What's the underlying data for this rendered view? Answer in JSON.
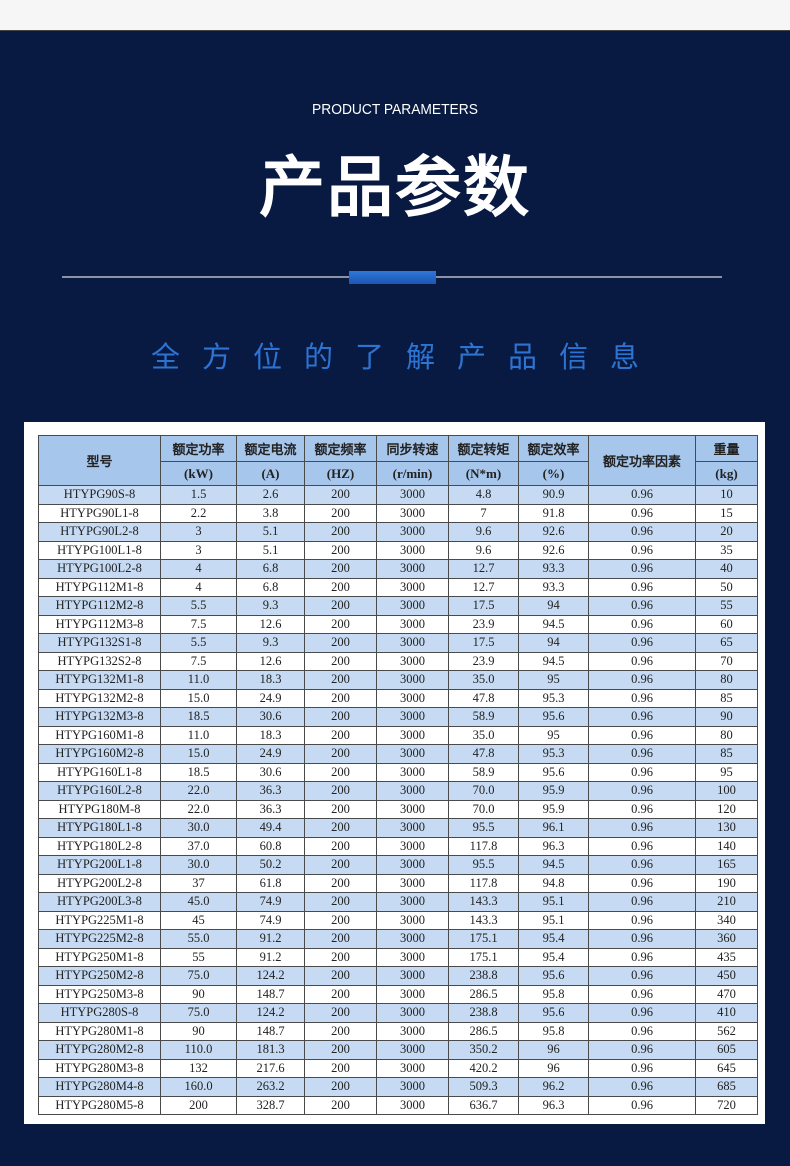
{
  "header": {
    "subtitle_en": "PRODUCT PARAMETERS",
    "title": "产品参数",
    "tagline": "全方位的了解产品信息"
  },
  "colors": {
    "background": "#081a42",
    "accent": "#2d73d2",
    "header_cell": "#a7c6ec",
    "alt_row": "#c6dbf3"
  },
  "table": {
    "columns": [
      {
        "label": "型号",
        "unit": ""
      },
      {
        "label": "额定功率",
        "unit": "(kW)"
      },
      {
        "label": "额定电流",
        "unit": "(A)"
      },
      {
        "label": "额定频率",
        "unit": "(HZ)"
      },
      {
        "label": "同步转速",
        "unit": "(r/min)"
      },
      {
        "label": "额定转矩",
        "unit": "(N*m)"
      },
      {
        "label": "额定效率",
        "unit": "(%)"
      },
      {
        "label": "额定功率因素",
        "unit": ""
      },
      {
        "label": "重量",
        "unit": "(kg)"
      }
    ],
    "rows": [
      [
        "HTYPG90S-8",
        "1.5",
        "2.6",
        "200",
        "3000",
        "4.8",
        "90.9",
        "0.96",
        "10"
      ],
      [
        "HTYPG90L1-8",
        "2.2",
        "3.8",
        "200",
        "3000",
        "7",
        "91.8",
        "0.96",
        "15"
      ],
      [
        "HTYPG90L2-8",
        "3",
        "5.1",
        "200",
        "3000",
        "9.6",
        "92.6",
        "0.96",
        "20"
      ],
      [
        "HTYPG100L1-8",
        "3",
        "5.1",
        "200",
        "3000",
        "9.6",
        "92.6",
        "0.96",
        "35"
      ],
      [
        "HTYPG100L2-8",
        "4",
        "6.8",
        "200",
        "3000",
        "12.7",
        "93.3",
        "0.96",
        "40"
      ],
      [
        "HTYPG112M1-8",
        "4",
        "6.8",
        "200",
        "3000",
        "12.7",
        "93.3",
        "0.96",
        "50"
      ],
      [
        "HTYPG112M2-8",
        "5.5",
        "9.3",
        "200",
        "3000",
        "17.5",
        "94",
        "0.96",
        "55"
      ],
      [
        "HTYPG112M3-8",
        "7.5",
        "12.6",
        "200",
        "3000",
        "23.9",
        "94.5",
        "0.96",
        "60"
      ],
      [
        "HTYPG132S1-8",
        "5.5",
        "9.3",
        "200",
        "3000",
        "17.5",
        "94",
        "0.96",
        "65"
      ],
      [
        "HTYPG132S2-8",
        "7.5",
        "12.6",
        "200",
        "3000",
        "23.9",
        "94.5",
        "0.96",
        "70"
      ],
      [
        "HTYPG132M1-8",
        "11.0",
        "18.3",
        "200",
        "3000",
        "35.0",
        "95",
        "0.96",
        "80"
      ],
      [
        "HTYPG132M2-8",
        "15.0",
        "24.9",
        "200",
        "3000",
        "47.8",
        "95.3",
        "0.96",
        "85"
      ],
      [
        "HTYPG132M3-8",
        "18.5",
        "30.6",
        "200",
        "3000",
        "58.9",
        "95.6",
        "0.96",
        "90"
      ],
      [
        "HTYPG160M1-8",
        "11.0",
        "18.3",
        "200",
        "3000",
        "35.0",
        "95",
        "0.96",
        "80"
      ],
      [
        "HTYPG160M2-8",
        "15.0",
        "24.9",
        "200",
        "3000",
        "47.8",
        "95.3",
        "0.96",
        "85"
      ],
      [
        "HTYPG160L1-8",
        "18.5",
        "30.6",
        "200",
        "3000",
        "58.9",
        "95.6",
        "0.96",
        "95"
      ],
      [
        "HTYPG160L2-8",
        "22.0",
        "36.3",
        "200",
        "3000",
        "70.0",
        "95.9",
        "0.96",
        "100"
      ],
      [
        "HTYPG180M-8",
        "22.0",
        "36.3",
        "200",
        "3000",
        "70.0",
        "95.9",
        "0.96",
        "120"
      ],
      [
        "HTYPG180L1-8",
        "30.0",
        "49.4",
        "200",
        "3000",
        "95.5",
        "96.1",
        "0.96",
        "130"
      ],
      [
        "HTYPG180L2-8",
        "37.0",
        "60.8",
        "200",
        "3000",
        "117.8",
        "96.3",
        "0.96",
        "140"
      ],
      [
        "HTYPG200L1-8",
        "30.0",
        "50.2",
        "200",
        "3000",
        "95.5",
        "94.5",
        "0.96",
        "165"
      ],
      [
        "HTYPG200L2-8",
        "37",
        "61.8",
        "200",
        "3000",
        "117.8",
        "94.8",
        "0.96",
        "190"
      ],
      [
        "HTYPG200L3-8",
        "45.0",
        "74.9",
        "200",
        "3000",
        "143.3",
        "95.1",
        "0.96",
        "210"
      ],
      [
        "HTYPG225M1-8",
        "45",
        "74.9",
        "200",
        "3000",
        "143.3",
        "95.1",
        "0.96",
        "340"
      ],
      [
        "HTYPG225M2-8",
        "55.0",
        "91.2",
        "200",
        "3000",
        "175.1",
        "95.4",
        "0.96",
        "360"
      ],
      [
        "HTYPG250M1-8",
        "55",
        "91.2",
        "200",
        "3000",
        "175.1",
        "95.4",
        "0.96",
        "435"
      ],
      [
        "HTYPG250M2-8",
        "75.0",
        "124.2",
        "200",
        "3000",
        "238.8",
        "95.6",
        "0.96",
        "450"
      ],
      [
        "HTYPG250M3-8",
        "90",
        "148.7",
        "200",
        "3000",
        "286.5",
        "95.8",
        "0.96",
        "470"
      ],
      [
        "HTYPG280S-8",
        "75.0",
        "124.2",
        "200",
        "3000",
        "238.8",
        "95.6",
        "0.96",
        "410"
      ],
      [
        "HTYPG280M1-8",
        "90",
        "148.7",
        "200",
        "3000",
        "286.5",
        "95.8",
        "0.96",
        "562"
      ],
      [
        "HTYPG280M2-8",
        "110.0",
        "181.3",
        "200",
        "3000",
        "350.2",
        "96",
        "0.96",
        "605"
      ],
      [
        "HTYPG280M3-8",
        "132",
        "217.6",
        "200",
        "3000",
        "420.2",
        "96",
        "0.96",
        "645"
      ],
      [
        "HTYPG280M4-8",
        "160.0",
        "263.2",
        "200",
        "3000",
        "509.3",
        "96.2",
        "0.96",
        "685"
      ],
      [
        "HTYPG280M5-8",
        "200",
        "328.7",
        "200",
        "3000",
        "636.7",
        "96.3",
        "0.96",
        "720"
      ]
    ]
  }
}
